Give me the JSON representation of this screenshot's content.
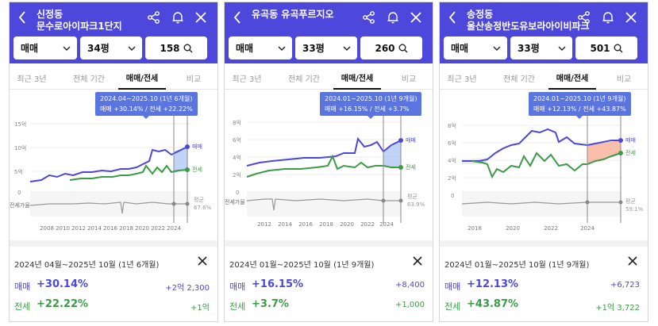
{
  "panels": [
    {
      "title": "신정동 문수로아이파크1단지",
      "trade": "매매",
      "size": "34평",
      "count": "158",
      "tabs": [
        "최근 3년",
        "전체 기간",
        "매매/전세",
        "비교"
      ],
      "tooltip": {
        "range": "2024.04~2025.10 (1년 6개월)",
        "stats": "매매 +30.14% / 전세 +22.22%"
      },
      "yticks": [
        "15억",
        "10억",
        "5억",
        "0"
      ],
      "xticks": [
        "2008",
        "2010",
        "2012",
        "2014",
        "2016",
        "2018",
        "2020",
        "2022",
        "2024"
      ],
      "series_labels": {
        "sale": "매매",
        "jeonse": "전세",
        "avg": "평균",
        "avg_value": "67.6%",
        "ratio": "전세가율"
      },
      "summary": {
        "period": "2024년 04월~2025년 10월 (1년 6개월)",
        "sale_label": "매매",
        "sale_pct": "+30.14%",
        "sale_amt": "+2억 2,300",
        "jeonse_label": "전세",
        "jeonse_pct": "+22.22%",
        "jeonse_amt": "+1억"
      }
    },
    {
      "title": "유곡동 유곡푸르지오",
      "trade": "매매",
      "size": "33평",
      "count": "260",
      "tabs": [
        "최근 3년",
        "전체 기간",
        "매매/전세",
        "비교"
      ],
      "tooltip": {
        "range": "2024.01~2025.10 (1년 9개월)",
        "stats": "매매 +16.15% / 전세 +3.7%"
      },
      "yticks": [
        "8억",
        "6억",
        "4억",
        "2억",
        "0"
      ],
      "xticks": [
        "2012",
        "2014",
        "2016",
        "2018",
        "2020",
        "2022",
        "2024"
      ],
      "series_labels": {
        "sale": "매매",
        "jeonse": "전세",
        "avg": "평균",
        "avg_value": "63.9%",
        "ratio": "전세가율"
      },
      "summary": {
        "period": "2024년 01월~2025년 10월 (1년 9개월)",
        "sale_label": "매매",
        "sale_pct": "+16.15%",
        "sale_amt": "+8,400",
        "jeonse_label": "전세",
        "jeonse_pct": "+3.7%",
        "jeonse_amt": "+1,000"
      }
    },
    {
      "title": "송정동 울산송정반도유보라아이비파크",
      "trade": "매매",
      "size": "33평",
      "count": "501",
      "tabs": [
        "최근 3년",
        "전체 기간",
        "매매/전세",
        "비교"
      ],
      "tooltip": {
        "range": "2024.01~2025.10 (1년 9개월)",
        "stats": "매매 +12.13% / 전세 +43.87%"
      },
      "yticks": [
        "8억",
        "6억",
        "4억",
        "2억",
        "0"
      ],
      "xticks": [
        "2018",
        "2020",
        "2022",
        "2024"
      ],
      "series_labels": {
        "sale": "매매",
        "jeonse": "전세",
        "avg": "평균",
        "avg_value": "59.1%",
        "ratio": "전세가율"
      },
      "summary": {
        "period": "2024년 01월~2025년 10월 (1년 9개월)",
        "sale_label": "매매",
        "sale_pct": "+12.13%",
        "sale_amt": "+6,723",
        "jeonse_label": "전세",
        "jeonse_pct": "+43.87%",
        "jeonse_amt": "+1억 3,722"
      }
    }
  ],
  "colors": {
    "header": "#4d47db",
    "sale": "#4d47db",
    "jeonse": "#3b9b47",
    "ratio": "#888888",
    "tooltip": "#5a74e0"
  },
  "icons": [
    "back-arrow-icon",
    "share-icon",
    "bell-icon",
    "close-icon",
    "chevron-down-icon",
    "search-icon"
  ]
}
